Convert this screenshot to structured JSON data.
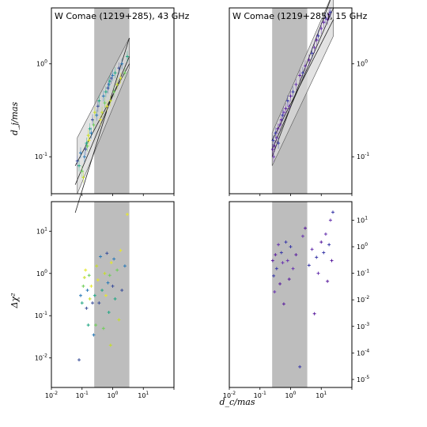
{
  "figure": {
    "xlabel": "d_c/mas",
    "ylabel_top": "d_j/mas",
    "ylabel_bottom": "Δχ²"
  },
  "chart_data": [
    {
      "id": "top-left",
      "type": "scatter",
      "title": "W Comae (1219+285), 43 GHz",
      "xscale": "log",
      "yscale": "log",
      "xlim": [
        0.01,
        100
      ],
      "ylim": [
        0.04,
        4
      ],
      "shaded_band": [
        0.25,
        3.5
      ],
      "yticks": [
        "10^{-1}",
        "10^{0}"
      ],
      "fit_lines": [
        {
          "x": [
            0.06,
            3.5
          ],
          "y": [
            0.025,
            1.9
          ]
        },
        {
          "x": [
            0.06,
            3.5
          ],
          "y": [
            0.05,
            1.2
          ]
        },
        {
          "x": [
            0.06,
            3.5
          ],
          "y": [
            0.08,
            1.0
          ]
        }
      ],
      "fit_band": {
        "x": [
          0.07,
          3.5
        ],
        "y_low_start": 0.04,
        "y_high_start": 0.16,
        "y_low_end": 0.9,
        "y_high_end": 1.9
      },
      "colors": [
        "#3b4f9a",
        "#2a7ab8",
        "#22a784",
        "#6fce58",
        "#c6de28",
        "#e6e82a"
      ],
      "points": [
        [
          0.07,
          0.09,
          0
        ],
        [
          0.08,
          0.08,
          2
        ],
        [
          0.09,
          0.11,
          1
        ],
        [
          0.1,
          0.07,
          3
        ],
        [
          0.11,
          0.06,
          4
        ],
        [
          0.12,
          0.1,
          1
        ],
        [
          0.13,
          0.12,
          0
        ],
        [
          0.14,
          0.14,
          2
        ],
        [
          0.15,
          0.13,
          3
        ],
        [
          0.16,
          0.17,
          4
        ],
        [
          0.17,
          0.15,
          5
        ],
        [
          0.18,
          0.2,
          2
        ],
        [
          0.2,
          0.18,
          1
        ],
        [
          0.22,
          0.25,
          0
        ],
        [
          0.24,
          0.22,
          3
        ],
        [
          0.26,
          0.3,
          4
        ],
        [
          0.3,
          0.28,
          1
        ],
        [
          0.33,
          0.35,
          0
        ],
        [
          0.36,
          0.4,
          2
        ],
        [
          0.4,
          0.25,
          5
        ],
        [
          0.45,
          0.3,
          4
        ],
        [
          0.5,
          0.45,
          1
        ],
        [
          0.55,
          0.38,
          3
        ],
        [
          0.6,
          0.5,
          2
        ],
        [
          0.65,
          0.35,
          5
        ],
        [
          0.7,
          0.55,
          0
        ],
        [
          0.75,
          0.6,
          1
        ],
        [
          0.8,
          0.65,
          2
        ],
        [
          0.85,
          0.4,
          4
        ],
        [
          0.9,
          0.7,
          0
        ],
        [
          1.0,
          0.75,
          1
        ],
        [
          1.1,
          0.5,
          3
        ],
        [
          1.2,
          0.8,
          2
        ],
        [
          1.4,
          0.6,
          4
        ],
        [
          1.6,
          0.9,
          0
        ],
        [
          1.8,
          0.7,
          5
        ],
        [
          2.0,
          1.0,
          1
        ],
        [
          2.5,
          0.8,
          3
        ],
        [
          3.0,
          1.2,
          2
        ]
      ]
    },
    {
      "id": "top-right",
      "type": "scatter",
      "title": "W Comae (1219+285), 15 GHz",
      "xscale": "log",
      "yscale": "log",
      "xlim": [
        0.01,
        100
      ],
      "ylim": [
        0.04,
        4
      ],
      "shaded_band": [
        0.25,
        3.5
      ],
      "yticks": [
        "10^{-1}",
        "10^{0}"
      ],
      "fit_lines": [
        {
          "x": [
            0.25,
            25
          ],
          "y": [
            0.1,
            6.0
          ]
        },
        {
          "x": [
            0.25,
            25
          ],
          "y": [
            0.12,
            4.0
          ]
        },
        {
          "x": [
            0.25,
            25
          ],
          "y": [
            0.15,
            3.0
          ]
        }
      ],
      "fit_band": {
        "x": [
          0.25,
          25
        ],
        "y_low_start": 0.08,
        "y_high_start": 0.18,
        "y_low_end": 2.0,
        "y_high_end": 6.0
      },
      "colors": [
        "#5a1e9e",
        "#3b3aa8",
        "#6a36b0"
      ],
      "points": [
        [
          0.26,
          0.12,
          0
        ],
        [
          0.27,
          0.15,
          1
        ],
        [
          0.28,
          0.1,
          2
        ],
        [
          0.3,
          0.13,
          0
        ],
        [
          0.32,
          0.18,
          1
        ],
        [
          0.35,
          0.16,
          2
        ],
        [
          0.38,
          0.2,
          0
        ],
        [
          0.4,
          0.14,
          1
        ],
        [
          0.45,
          0.22,
          2
        ],
        [
          0.5,
          0.25,
          0
        ],
        [
          0.55,
          0.28,
          1
        ],
        [
          0.6,
          0.3,
          2
        ],
        [
          0.7,
          0.33,
          0
        ],
        [
          0.8,
          0.4,
          1
        ],
        [
          0.9,
          0.35,
          2
        ],
        [
          1.0,
          0.45,
          0
        ],
        [
          1.2,
          0.5,
          1
        ],
        [
          1.5,
          0.6,
          2
        ],
        [
          2.0,
          0.75,
          0
        ],
        [
          2.5,
          0.8,
          1
        ],
        [
          3.0,
          0.95,
          2
        ],
        [
          4.0,
          1.1,
          0
        ],
        [
          5.0,
          1.3,
          1
        ],
        [
          6.0,
          1.5,
          2
        ],
        [
          7.0,
          1.8,
          0
        ],
        [
          8.0,
          2.0,
          1
        ],
        [
          10.0,
          2.4,
          2
        ],
        [
          12.0,
          2.8,
          0
        ],
        [
          14.0,
          3.1,
          1
        ],
        [
          16.0,
          3.0,
          2
        ],
        [
          18.0,
          3.4,
          0
        ],
        [
          20.0,
          3.6,
          1
        ]
      ]
    },
    {
      "id": "bottom-left",
      "type": "scatter",
      "xscale": "log",
      "yscale": "log",
      "xlim": [
        0.01,
        100
      ],
      "ylim": [
        0.002,
        50
      ],
      "shaded_band": [
        0.25,
        3.5
      ],
      "xticks": [
        "10^{-2}",
        "10^{-1}",
        "10^{0}",
        "10^{1}"
      ],
      "yticks": [
        "10^{-2}",
        "10^{-1}",
        "10^{0}",
        "10^{1}"
      ],
      "colors": [
        "#3b4f9a",
        "#2a7ab8",
        "#22a784",
        "#6fce58",
        "#c6de28",
        "#e6e82a"
      ],
      "points": [
        [
          0.08,
          0.009,
          0
        ],
        [
          0.09,
          0.3,
          1
        ],
        [
          0.1,
          0.2,
          2
        ],
        [
          0.11,
          0.5,
          3
        ],
        [
          0.12,
          0.8,
          4
        ],
        [
          0.13,
          1.2,
          5
        ],
        [
          0.14,
          0.15,
          0
        ],
        [
          0.15,
          0.4,
          1
        ],
        [
          0.16,
          0.06,
          2
        ],
        [
          0.17,
          0.9,
          3
        ],
        [
          0.18,
          0.25,
          4
        ],
        [
          0.2,
          0.5,
          5
        ],
        [
          0.22,
          0.2,
          0
        ],
        [
          0.24,
          0.035,
          1
        ],
        [
          0.26,
          0.3,
          2
        ],
        [
          0.28,
          0.06,
          3
        ],
        [
          0.3,
          1.5,
          4
        ],
        [
          0.33,
          0.7,
          5
        ],
        [
          0.36,
          0.2,
          0
        ],
        [
          0.4,
          2.5,
          1
        ],
        [
          0.45,
          0.4,
          2
        ],
        [
          0.5,
          0.05,
          3
        ],
        [
          0.55,
          1.0,
          4
        ],
        [
          0.6,
          0.3,
          5
        ],
        [
          0.65,
          3.0,
          0
        ],
        [
          0.7,
          0.6,
          1
        ],
        [
          0.75,
          0.12,
          2
        ],
        [
          0.8,
          0.9,
          3
        ],
        [
          0.85,
          0.02,
          4
        ],
        [
          0.9,
          1.8,
          5
        ],
        [
          1.0,
          0.5,
          0
        ],
        [
          1.1,
          2.2,
          1
        ],
        [
          1.2,
          0.25,
          2
        ],
        [
          1.4,
          1.2,
          3
        ],
        [
          1.6,
          0.08,
          4
        ],
        [
          1.8,
          3.5,
          5
        ],
        [
          2.0,
          0.4,
          0
        ],
        [
          2.5,
          1.5,
          1
        ],
        [
          3.0,
          25,
          5
        ]
      ]
    },
    {
      "id": "bottom-right",
      "type": "scatter",
      "xscale": "log",
      "yscale": "log",
      "xlim": [
        0.01,
        100
      ],
      "ylim": [
        5e-06,
        50
      ],
      "shaded_band": [
        0.25,
        3.5
      ],
      "xticks": [
        "10^{-2}",
        "10^{-1}",
        "10^{0}",
        "10^{1}"
      ],
      "yticks": [
        "10^{-5}",
        "10^{-4}",
        "10^{-3}",
        "10^{-2}",
        "10^{-1}",
        "10^{0}",
        "10^{1}"
      ],
      "colors": [
        "#5a1e9e",
        "#3b3aa8",
        "#6a36b0"
      ],
      "points": [
        [
          0.26,
          0.3,
          0
        ],
        [
          0.28,
          0.08,
          1
        ],
        [
          0.3,
          0.02,
          2
        ],
        [
          0.32,
          0.5,
          0
        ],
        [
          0.35,
          0.15,
          1
        ],
        [
          0.4,
          1.2,
          2
        ],
        [
          0.45,
          0.04,
          0
        ],
        [
          0.5,
          0.6,
          1
        ],
        [
          0.55,
          0.25,
          2
        ],
        [
          0.6,
          0.007,
          0
        ],
        [
          0.7,
          1.5,
          1
        ],
        [
          0.8,
          0.3,
          2
        ],
        [
          0.9,
          0.06,
          0
        ],
        [
          1.0,
          1.0,
          1
        ],
        [
          1.2,
          0.15,
          2
        ],
        [
          1.5,
          0.5,
          0
        ],
        [
          2.0,
          3e-05,
          1
        ],
        [
          2.5,
          2.5,
          2
        ],
        [
          3.0,
          5.0,
          0
        ],
        [
          4.0,
          0.2,
          1
        ],
        [
          5.0,
          0.8,
          2
        ],
        [
          6.0,
          0.003,
          0
        ],
        [
          7.0,
          0.4,
          1
        ],
        [
          8.0,
          0.1,
          2
        ],
        [
          10.0,
          1.5,
          0
        ],
        [
          12.0,
          0.6,
          1
        ],
        [
          14.0,
          3.0,
          2
        ],
        [
          16.0,
          0.05,
          0
        ],
        [
          18.0,
          1.2,
          1
        ],
        [
          20.0,
          10.0,
          2
        ],
        [
          22.0,
          0.3,
          0
        ],
        [
          24.0,
          20.0,
          1
        ]
      ]
    }
  ]
}
